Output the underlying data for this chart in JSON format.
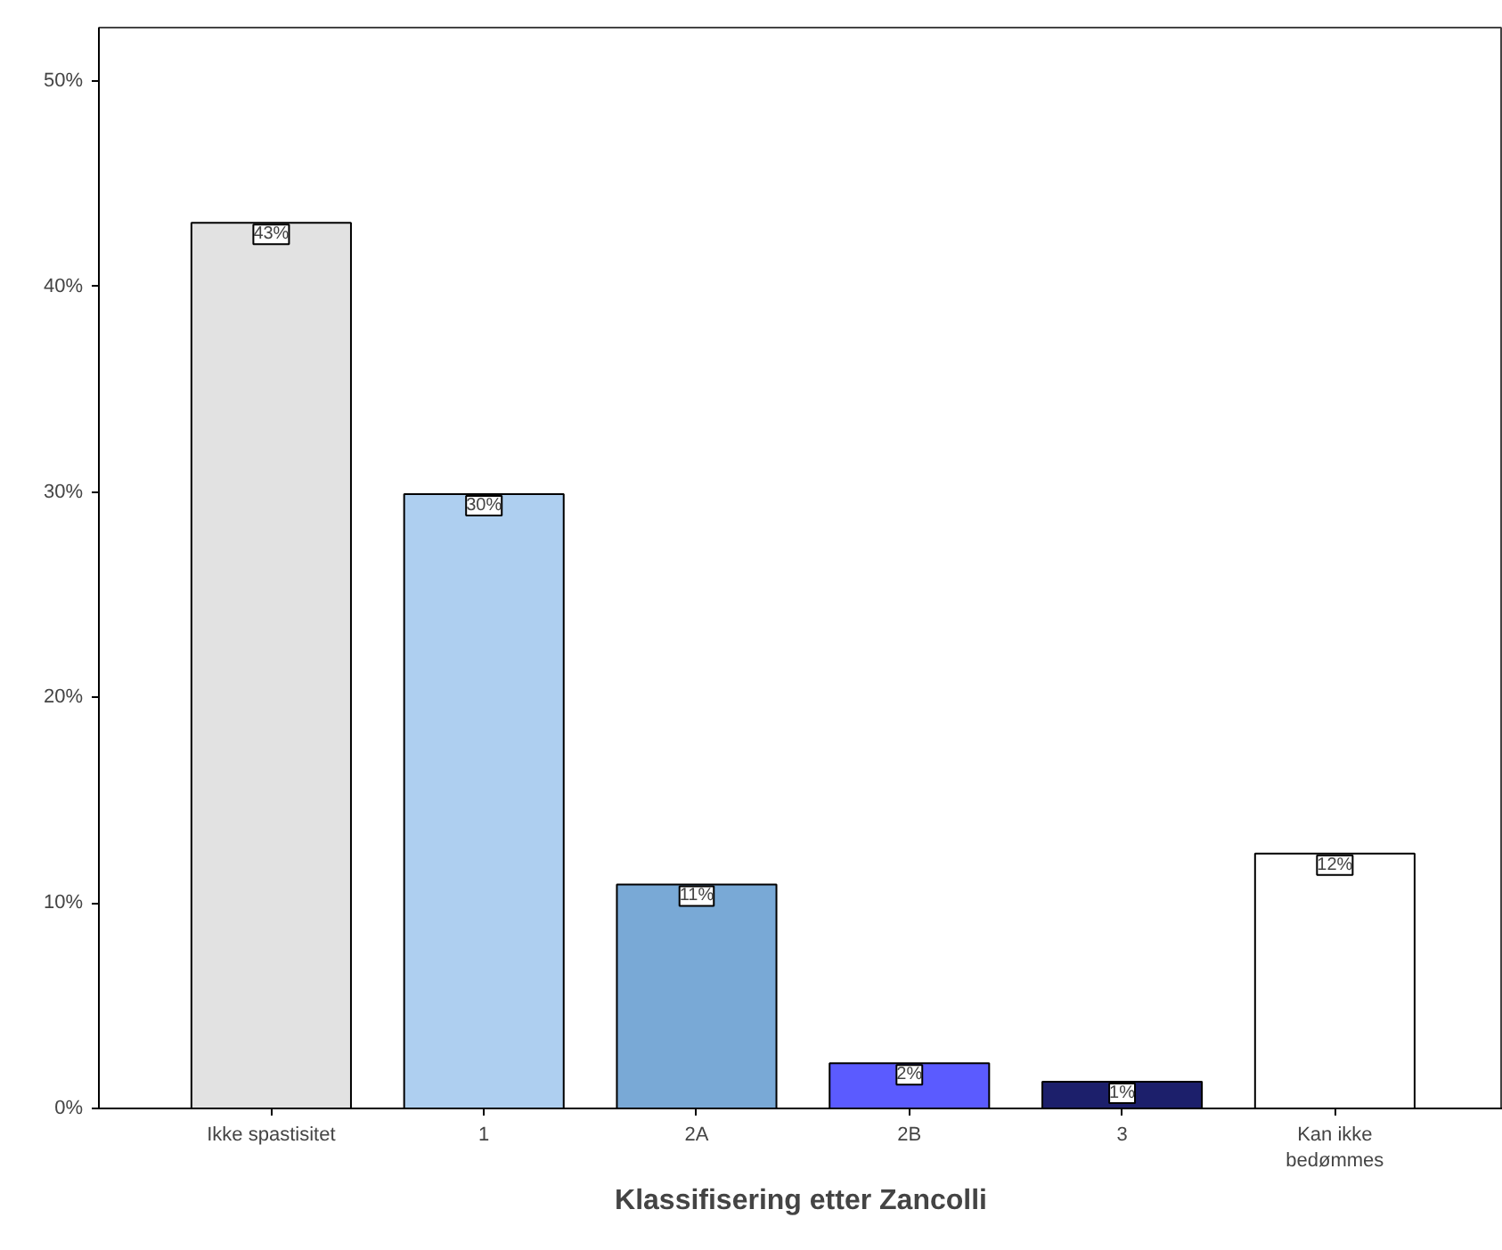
{
  "chart_data": {
    "type": "bar",
    "xlabel": "Klassifisering etter Zancolli",
    "categories": [
      "Ikke spastisitet",
      "1",
      "2A",
      "2B",
      "3",
      "Kan ikke bedømmes"
    ],
    "values": [
      43.1,
      29.9,
      10.9,
      2.2,
      1.3,
      12.4
    ],
    "colors": [
      "#e2e2e2",
      "#aecff0",
      "#79a9d6",
      "#5b5bff",
      "#1c1f6b",
      "#ffffff"
    ],
    "value_labels": [
      "43%",
      "30%",
      "11%",
      "2%",
      "1%",
      "12%"
    ],
    "ylim": [
      0,
      52.6
    ],
    "yticks": [
      {
        "value": 0,
        "label": "0%"
      },
      {
        "value": 10,
        "label": "10%"
      },
      {
        "value": 20,
        "label": "20%"
      },
      {
        "value": 30,
        "label": "30%"
      },
      {
        "value": 40,
        "label": "40%"
      },
      {
        "value": 50,
        "label": "50%"
      }
    ],
    "grid": false
  }
}
